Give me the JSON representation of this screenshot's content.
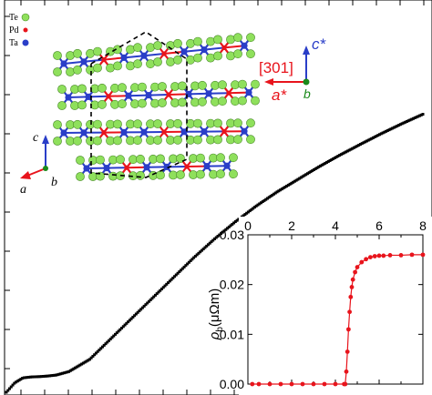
{
  "chart_data": [
    {
      "type": "scatter",
      "title": "",
      "xlabel": "",
      "ylabel": "",
      "series": [
        {
          "marker": "square",
          "color": "#000000",
          "x": [
            0.0,
            0.02,
            0.04,
            0.06,
            0.08,
            0.1,
            0.12,
            0.15,
            0.2,
            0.25,
            0.3,
            0.35,
            0.4,
            0.45,
            0.5,
            0.55,
            0.6,
            0.65,
            0.7,
            0.75,
            0.8,
            0.85,
            0.9,
            0.95,
            1.0
          ],
          "y": [
            0.0,
            0.03,
            0.046,
            0.049,
            0.05,
            0.052,
            0.055,
            0.066,
            0.105,
            0.17,
            0.235,
            0.3,
            0.365,
            0.43,
            0.49,
            0.545,
            0.595,
            0.64,
            0.68,
            0.72,
            0.757,
            0.792,
            0.826,
            0.858,
            0.888
          ]
        }
      ]
    },
    {
      "type": "line",
      "title": "",
      "xlabel": "",
      "ylabel": "ρ_b (μΩm)",
      "ylabel_main": "ρ",
      "ylabel_sub": "b",
      "ylabel_unit": "(μΩm)",
      "xticks": [
        "0",
        "2",
        "4",
        "6",
        "8"
      ],
      "yticks": [
        "0.00",
        "0.01",
        "0.02",
        "0.03"
      ],
      "xlim": [
        0,
        8
      ],
      "ylim": [
        0,
        0.03
      ],
      "series": [
        {
          "color": "#e8141c",
          "marker": "circle",
          "x": [
            0.2,
            0.5,
            1.0,
            1.5,
            2.0,
            2.5,
            3.0,
            3.5,
            4.0,
            4.4,
            4.45,
            4.5,
            4.55,
            4.6,
            4.65,
            4.7,
            4.75,
            4.8,
            4.9,
            5.0,
            5.2,
            5.4,
            5.6,
            5.8,
            6.0,
            6.2,
            6.5,
            7.0,
            7.5,
            8.0
          ],
          "y": [
            0.0,
            0.0,
            0.0,
            0.0,
            0.0,
            0.0,
            0.0,
            0.0,
            0.0,
            0.0,
            0.0,
            0.0025,
            0.0065,
            0.011,
            0.0145,
            0.0175,
            0.0195,
            0.021,
            0.0225,
            0.0235,
            0.0245,
            0.0251,
            0.0255,
            0.0257,
            0.0258,
            0.0258,
            0.0259,
            0.0259,
            0.026,
            0.026
          ]
        }
      ]
    }
  ],
  "inset_structure": {
    "legend": [
      {
        "label": "Te",
        "color": "#8fe05c"
      },
      {
        "label": "Pd",
        "color": "#e8141c"
      },
      {
        "label": "Ta",
        "color": "#2a3ec8"
      }
    ],
    "axes_left": {
      "c": "c",
      "a": "a",
      "b": "b"
    },
    "axes_right": {
      "c_star": "c*",
      "a_star": "a*",
      "b": "b",
      "direction": "[301]"
    }
  }
}
